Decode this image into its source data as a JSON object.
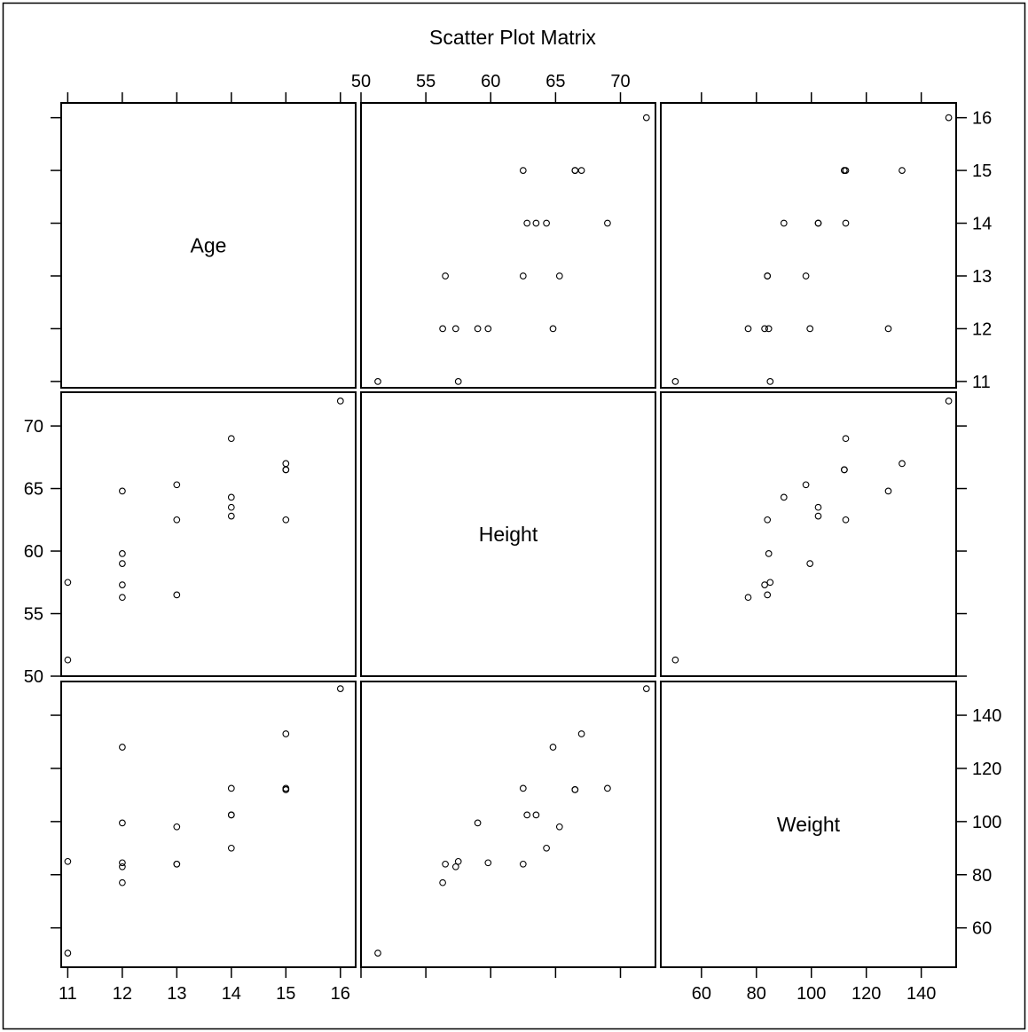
{
  "chart_data": {
    "type": "scatter-matrix",
    "title": "Scatter Plot Matrix",
    "variables": [
      {
        "name": "Age",
        "range": [
          10.88,
          16.28
        ],
        "ticks": [
          11,
          12,
          13,
          14,
          15,
          16
        ]
      },
      {
        "name": "Height",
        "range": [
          50.0,
          72.7
        ],
        "ticks": [
          50,
          55,
          60,
          65,
          70
        ]
      },
      {
        "name": "Weight",
        "range": [
          45.2,
          152.7
        ],
        "ticks": [
          60,
          80,
          100,
          120,
          140
        ]
      }
    ],
    "observations": [
      {
        "age": 14,
        "height": 69.0,
        "weight": 112.5
      },
      {
        "age": 13,
        "height": 56.5,
        "weight": 84.0
      },
      {
        "age": 13,
        "height": 65.3,
        "weight": 98.0
      },
      {
        "age": 14,
        "height": 62.8,
        "weight": 102.5
      },
      {
        "age": 14,
        "height": 63.5,
        "weight": 102.5
      },
      {
        "age": 12,
        "height": 57.3,
        "weight": 83.0
      },
      {
        "age": 12,
        "height": 59.8,
        "weight": 84.5
      },
      {
        "age": 15,
        "height": 62.5,
        "weight": 112.5
      },
      {
        "age": 13,
        "height": 62.5,
        "weight": 84.0
      },
      {
        "age": 12,
        "height": 59.0,
        "weight": 99.5
      },
      {
        "age": 11,
        "height": 51.3,
        "weight": 50.5
      },
      {
        "age": 14,
        "height": 64.3,
        "weight": 90.0
      },
      {
        "age": 12,
        "height": 56.3,
        "weight": 77.0
      },
      {
        "age": 15,
        "height": 66.5,
        "weight": 112.0
      },
      {
        "age": 16,
        "height": 72.0,
        "weight": 150.0
      },
      {
        "age": 12,
        "height": 64.8,
        "weight": 128.0
      },
      {
        "age": 15,
        "height": 67.0,
        "weight": 133.0
      },
      {
        "age": 11,
        "height": 57.5,
        "weight": 85.0
      },
      {
        "age": 15,
        "height": 66.5,
        "weight": 112.0
      }
    ],
    "axis_label_sides": {
      "Age": [
        "bottom",
        "right"
      ],
      "Height": [
        "top",
        "left"
      ],
      "Weight": [
        "bottom",
        "right"
      ]
    },
    "grid": false,
    "legend": "none"
  }
}
